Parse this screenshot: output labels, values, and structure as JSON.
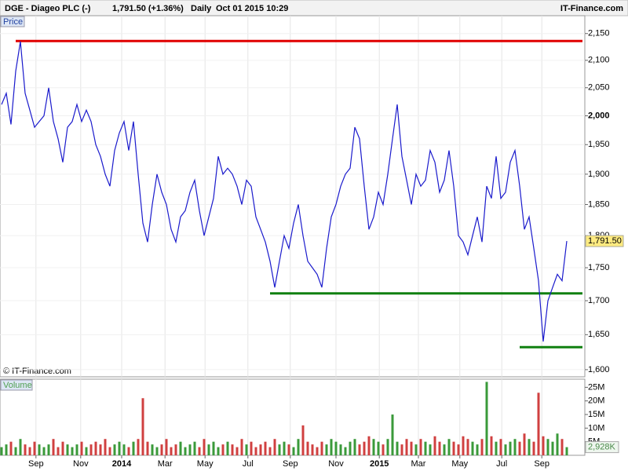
{
  "header": {
    "symbol": "DGE - Diageo PLC (-)",
    "price_text": "1,791.50 (+1.36%)",
    "period": "Daily",
    "timestamp": "Oct 01 2015 10:29",
    "brand": "IT-Finance.com"
  },
  "chart_data": [
    {
      "type": "line",
      "panel_label": "Price",
      "copyright": "© IT-Finance.com",
      "log_scale": true,
      "grid": true,
      "color": "#1a1acc",
      "values": [
        2020,
        2040,
        1985,
        2080,
        2135,
        2040,
        2010,
        1980,
        1990,
        2000,
        2050,
        1990,
        1960,
        1920,
        1980,
        1990,
        2020,
        1990,
        2010,
        1990,
        1950,
        1930,
        1900,
        1880,
        1940,
        1970,
        1990,
        1940,
        1990,
        1900,
        1820,
        1790,
        1850,
        1900,
        1870,
        1850,
        1810,
        1790,
        1830,
        1840,
        1870,
        1890,
        1840,
        1800,
        1830,
        1860,
        1930,
        1900,
        1910,
        1900,
        1880,
        1850,
        1890,
        1880,
        1830,
        1810,
        1790,
        1760,
        1720,
        1760,
        1800,
        1780,
        1820,
        1850,
        1800,
        1760,
        1750,
        1740,
        1720,
        1780,
        1830,
        1850,
        1880,
        1900,
        1910,
        1980,
        1960,
        1880,
        1810,
        1830,
        1870,
        1850,
        1900,
        1960,
        2020,
        1930,
        1890,
        1850,
        1900,
        1880,
        1890,
        1940,
        1920,
        1870,
        1890,
        1940,
        1880,
        1800,
        1790,
        1770,
        1800,
        1830,
        1790,
        1880,
        1860,
        1930,
        1860,
        1870,
        1920,
        1940,
        1880,
        1810,
        1830,
        1780,
        1730,
        1640,
        1700,
        1720,
        1740,
        1730,
        1791.5
      ],
      "last_label": "1,791.50",
      "ylim": [
        1590,
        2184
      ],
      "yticks": [
        {
          "value": 1600,
          "label": "1,600"
        },
        {
          "value": 1650,
          "label": "1,650"
        },
        {
          "value": 1700,
          "label": "1,700"
        },
        {
          "value": 1750,
          "label": "1,750"
        },
        {
          "value": 1800,
          "label": "1,800"
        },
        {
          "value": 1850,
          "label": "1,850"
        },
        {
          "value": 1900,
          "label": "1,900"
        },
        {
          "value": 1950,
          "label": "1,950"
        },
        {
          "value": 2000,
          "label": "2,000"
        },
        {
          "value": 2050,
          "label": "2,050"
        },
        {
          "value": 2100,
          "label": "2,100"
        },
        {
          "value": 2150,
          "label": "2,150"
        }
      ],
      "hlines": [
        {
          "value": 2136,
          "color": "#e00000",
          "x_start": 3
        },
        {
          "value": 1711,
          "color": "#108010",
          "x_start": 57
        },
        {
          "value": 1632,
          "color": "#108010",
          "x_start": 110
        }
      ]
    },
    {
      "type": "volume",
      "panel_label": "Volume",
      "up_color": "#3a9a3a",
      "down_color": "#d04040",
      "values": [
        3,
        4,
        5,
        3,
        6,
        4,
        3,
        5,
        4,
        3,
        4,
        6,
        3,
        5,
        4,
        3,
        4,
        5,
        3,
        4,
        5,
        4,
        6,
        3,
        4,
        5,
        4,
        3,
        5,
        6,
        21,
        5,
        4,
        3,
        4,
        6,
        3,
        4,
        5,
        3,
        4,
        5,
        3,
        6,
        4,
        5,
        3,
        4,
        5,
        4,
        3,
        6,
        4,
        5,
        3,
        4,
        5,
        3,
        6,
        4,
        5,
        4,
        3,
        6,
        11,
        5,
        4,
        3,
        5,
        4,
        6,
        5,
        4,
        3,
        5,
        6,
        4,
        5,
        7,
        6,
        5,
        4,
        6,
        15,
        5,
        4,
        6,
        5,
        4,
        6,
        5,
        4,
        7,
        5,
        4,
        6,
        5,
        4,
        7,
        6,
        5,
        4,
        6,
        27,
        7,
        5,
        6,
        4,
        5,
        6,
        5,
        8,
        6,
        5,
        23,
        7,
        6,
        5,
        8,
        6,
        3
      ],
      "last_label": "2,928K",
      "ylim": [
        0,
        28
      ],
      "yticks": [
        {
          "value": 5,
          "label": "5M"
        },
        {
          "value": 10,
          "label": "10M"
        },
        {
          "value": 15,
          "label": "15M"
        },
        {
          "value": 20,
          "label": "20M"
        },
        {
          "value": 25,
          "label": "25M"
        }
      ],
      "xticks": [
        {
          "value": 7.3,
          "label": "Sep"
        },
        {
          "value": 16.8,
          "label": "Nov"
        },
        {
          "value": 25.5,
          "label": "2014"
        },
        {
          "value": 34.7,
          "label": "Mar"
        },
        {
          "value": 43.2,
          "label": "May"
        },
        {
          "value": 52.3,
          "label": "Jul"
        },
        {
          "value": 61.3,
          "label": "Sep"
        },
        {
          "value": 71,
          "label": "Nov"
        },
        {
          "value": 80.2,
          "label": "2015"
        },
        {
          "value": 88.5,
          "label": "Mar"
        },
        {
          "value": 97.3,
          "label": "May"
        },
        {
          "value": 106.2,
          "label": "Jul"
        },
        {
          "value": 114.7,
          "label": "Sep"
        }
      ]
    }
  ]
}
